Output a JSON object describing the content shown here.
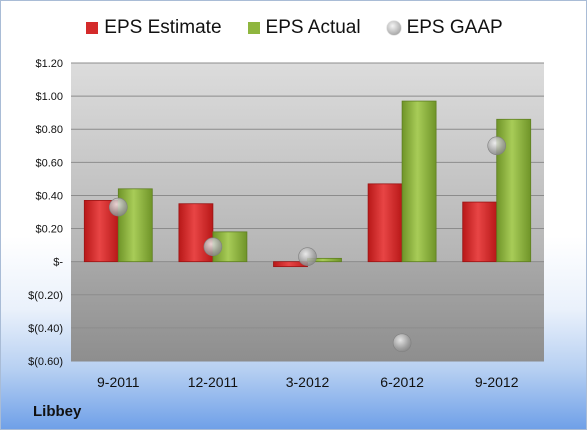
{
  "company": "Libbey",
  "chart_data": {
    "type": "bar",
    "categories": [
      "9-2011",
      "12-2011",
      "3-2012",
      "6-2012",
      "9-2012"
    ],
    "series": [
      {
        "name": "EPS Estimate",
        "type": "bar",
        "color": "#d42a2a",
        "values": [
          0.37,
          0.35,
          -0.03,
          0.47,
          0.36
        ]
      },
      {
        "name": "EPS Actual",
        "type": "bar",
        "color": "#8fb63f",
        "values": [
          0.44,
          0.18,
          0.02,
          0.97,
          0.86
        ]
      },
      {
        "name": "EPS GAAP",
        "type": "scatter",
        "color": "#b0b0b0",
        "values": [
          0.33,
          0.09,
          0.03,
          -0.49,
          0.7
        ]
      }
    ],
    "ylim": [
      -0.6,
      1.2
    ],
    "yticks": [
      1.2,
      1.0,
      0.8,
      0.6,
      0.4,
      0.2,
      0,
      -0.2,
      -0.4,
      -0.6
    ],
    "ytick_labels": [
      "$1.20",
      "$1.00",
      "$0.80",
      "$0.60",
      "$0.40",
      "$0.20",
      "$-",
      "$(0.20)",
      "$(0.40)",
      "$(0.60)"
    ],
    "grid": true,
    "legend": "top"
  }
}
